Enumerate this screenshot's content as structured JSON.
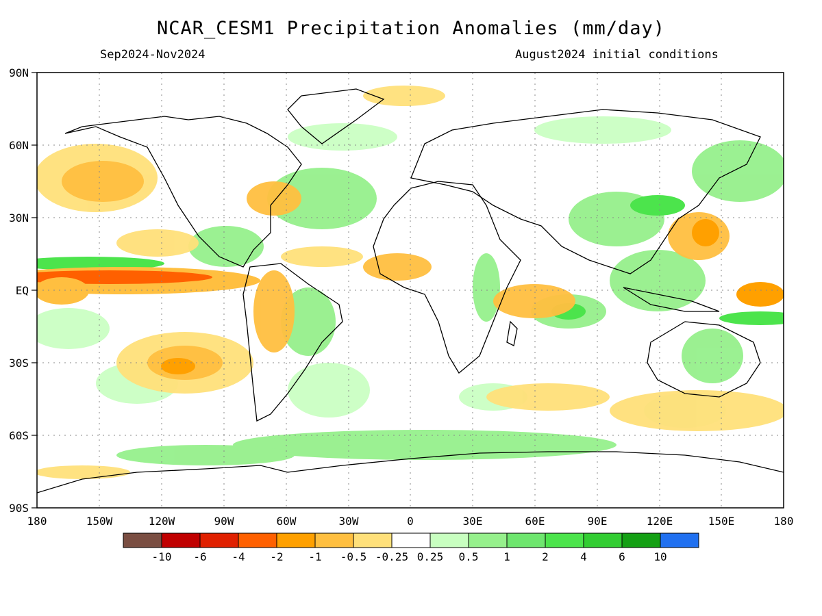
{
  "title": "NCAR_CESM1 Precipitation Anomalies (mm/day)",
  "period": "Sep2024-Nov2024",
  "initial_conditions": "August2024 initial conditions",
  "lat_labels": [
    "90N",
    "60N",
    "30N",
    "EQ",
    "30S",
    "60S",
    "90S"
  ],
  "lon_labels": [
    "180",
    "150W",
    "120W",
    "90W",
    "60W",
    "30W",
    "0",
    "30E",
    "60E",
    "90E",
    "120E",
    "150E",
    "180"
  ],
  "colorbar": {
    "colors": [
      "#7a4e42",
      "#c00000",
      "#e02000",
      "#ff6000",
      "#ffa000",
      "#ffbf40",
      "#ffe07a",
      "#ffffff",
      "#c8ffc0",
      "#96f08c",
      "#6ee66e",
      "#4ce44c",
      "#32cd32",
      "#14a014",
      "#2070f0"
    ],
    "labels": [
      "-10",
      "-6",
      "-4",
      "-2",
      "-1",
      "-0.5",
      "-0.25",
      "0.25",
      "0.5",
      "1",
      "2",
      "4",
      "6",
      "10"
    ]
  },
  "icons": [
    "coastline-outline",
    "gridline-dotted"
  ]
}
